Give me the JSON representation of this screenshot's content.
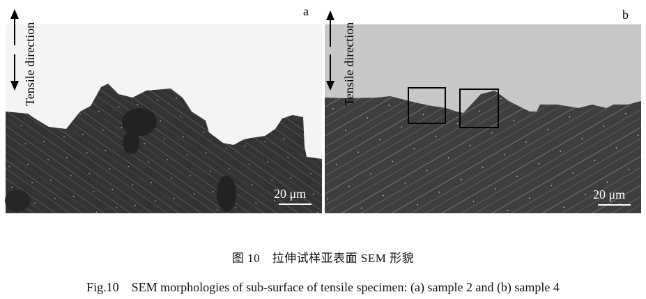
{
  "figure": {
    "panels": [
      {
        "label": "a",
        "direction_label": "Tensile direction",
        "scale_bar": "20 μm",
        "background_color": "#f4f4f4"
      },
      {
        "label": "b",
        "direction_label": "Tensile direction",
        "scale_bar": "20 μm",
        "background_color": "#c8c8c8"
      }
    ],
    "caption_cn": "图 10　拉伸试样亚表面 SEM 形貌",
    "caption_en": "Fig.10　SEM morphologies of sub-surface of tensile specimen: (a) sample 2 and (b) sample 4"
  }
}
